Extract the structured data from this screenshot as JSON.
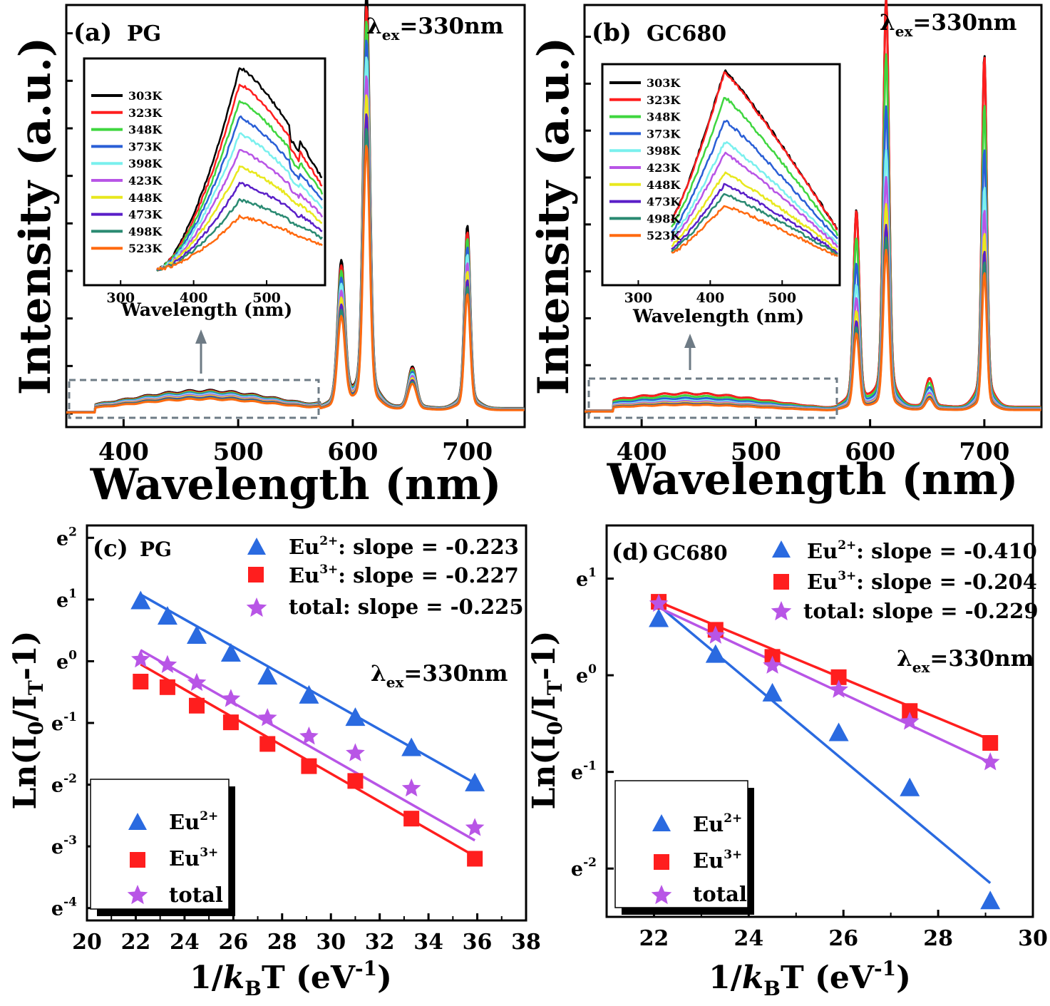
{
  "colors": {
    "temps": [
      "#000000",
      "#ff1e1e",
      "#3fd63f",
      "#2a5fd6",
      "#7af0ee",
      "#b855e6",
      "#e8e81e",
      "#5a1fc8",
      "#2a8a72",
      "#ff6a10"
    ],
    "eu2": "#2a6ae0",
    "eu3": "#ff1e1e",
    "total": "#b855e6",
    "box": "#6e7b85"
  },
  "panels": {
    "a": {
      "label": "(a)",
      "sample": "PG",
      "lambda": "λ",
      "lambda_sub": "ex",
      "lambda_val": "=330nm"
    },
    "b": {
      "label": "(b)",
      "sample": "GC680",
      "lambda": "λ",
      "lambda_sub": "ex",
      "lambda_val": "=330nm"
    },
    "c": {
      "label": "(c)",
      "sample": "PG",
      "lambda": "λ",
      "lambda_sub": "ex",
      "lambda_val": "=330nm"
    },
    "d": {
      "label": "(d)",
      "sample": "GC680",
      "lambda": "λ",
      "lambda_sub": "ex",
      "lambda_val": "=330nm"
    }
  },
  "axis_text": {
    "spectra_ylabel": "Intensity (a.u.)",
    "spectra_xlabel": "Wavelength (nm)",
    "inset_xlabel": "Wavelength (nm)",
    "fit_ylabel": [
      "Ln(I",
      "0",
      "/I",
      "T",
      "-1)"
    ],
    "fit_xlabel": [
      "1/",
      "k",
      "B",
      "T (eV",
      "-1",
      ")"
    ]
  },
  "slopes": {
    "c": {
      "eu2": {
        "ion": "Eu",
        "sup": "2+",
        "text": ": slope = -0.223"
      },
      "eu3": {
        "ion": "Eu",
        "sup": "3+",
        "text": ": slope = -0.227"
      },
      "total": {
        "text": "total: slope = -0.225"
      }
    },
    "d": {
      "eu2": {
        "ion": "Eu",
        "sup": "2+",
        "text": ": slope = -0.410"
      },
      "eu3": {
        "ion": "Eu",
        "sup": "3+",
        "text": ": slope = -0.204"
      },
      "total": {
        "text": "total: slope = -0.229"
      }
    }
  },
  "legend": {
    "eu2": {
      "ion": "Eu",
      "sup": "2+"
    },
    "eu3": {
      "ion": "Eu",
      "sup": "3+"
    },
    "total": "total"
  },
  "chart_data": [
    {
      "panel": "a",
      "type": "line",
      "xlim": [
        350,
        750
      ],
      "xticks": [
        400,
        500,
        600,
        700
      ],
      "series_names": [
        "303K",
        "323K",
        "348K",
        "373K",
        "398K",
        "423K",
        "448K",
        "473K",
        "498K",
        "523K"
      ],
      "scales": [
        1.0,
        0.965,
        0.93,
        0.885,
        0.845,
        0.8,
        0.755,
        0.71,
        0.675,
        0.635
      ],
      "peaks": [
        {
          "x": 590,
          "y": 0.35,
          "w": 4.5
        },
        {
          "x": 612,
          "y": 1.0,
          "w": 4.0
        },
        {
          "x": 652,
          "y": 0.1,
          "w": 5.0
        },
        {
          "x": 700,
          "y": 0.44,
          "w": 3.5
        }
      ],
      "broadband": {
        "center": 470,
        "height": 0.055,
        "end": 572
      },
      "inset": {
        "xlim": [
          250,
          580
        ],
        "xticks": [
          300,
          400,
          500
        ],
        "series_names": [
          "303K",
          "323K",
          "348K",
          "373K",
          "398K",
          "423K",
          "448K",
          "473K",
          "498K",
          "523K"
        ]
      }
    },
    {
      "panel": "b",
      "type": "line",
      "xlim": [
        350,
        750
      ],
      "xticks": [
        400,
        500,
        600,
        700
      ],
      "series_names": [
        "303K",
        "323K",
        "348K",
        "373K",
        "398K",
        "423K",
        "448K",
        "473K",
        "498K",
        "523K"
      ],
      "scales": [
        1.0,
        0.995,
        0.86,
        0.735,
        0.63,
        0.565,
        0.5,
        0.45,
        0.42,
        0.39
      ],
      "peaks": [
        {
          "x": 588,
          "y": 0.48,
          "w": 3.5
        },
        {
          "x": 614,
          "y": 1.0,
          "w": 3.5
        },
        {
          "x": 652,
          "y": 0.07,
          "w": 4.5
        },
        {
          "x": 700,
          "y": 0.86,
          "w": 3.0
        }
      ],
      "broadband": {
        "center": 440,
        "height": 0.045,
        "end": 572
      },
      "inset": {
        "xlim": [
          250,
          580
        ],
        "xticks": [
          300,
          400,
          500
        ],
        "series_names": [
          "303K",
          "323K",
          "348K",
          "373K",
          "398K",
          "423K",
          "448K",
          "473K",
          "498K",
          "523K"
        ]
      }
    },
    {
      "panel": "c",
      "type": "scatter",
      "xlabel": "1/kBT (eV-1)",
      "ylabel": "Ln(I0/IT-1)",
      "xlim": [
        20,
        38
      ],
      "ylim": [
        -4.2,
        2.2
      ],
      "xticks": [
        20,
        22,
        24,
        26,
        28,
        30,
        32,
        34,
        36,
        38
      ],
      "yticks": [
        {
          "v": 2,
          "t": "e",
          "s": "2"
        },
        {
          "v": 1,
          "t": "e",
          "s": "1"
        },
        {
          "v": 0,
          "t": "e",
          "s": "0"
        },
        {
          "v": -1,
          "t": "e",
          "s": "-1"
        },
        {
          "v": -2,
          "t": "e",
          "s": "-2"
        },
        {
          "v": -3,
          "t": "e",
          "s": "-3"
        },
        {
          "v": -4,
          "t": "e",
          "s": "-4"
        }
      ],
      "series": [
        {
          "name": "Eu2+",
          "marker": "triangle",
          "x": [
            22.2,
            23.3,
            24.5,
            25.9,
            27.4,
            29.1,
            31.0,
            33.3,
            35.9
          ],
          "y": [
            0.97,
            0.72,
            0.41,
            0.12,
            -0.25,
            -0.56,
            -0.92,
            -1.41,
            -1.98
          ]
        },
        {
          "name": "Eu3+",
          "marker": "square",
          "x": [
            22.2,
            23.3,
            24.5,
            25.9,
            27.4,
            29.1,
            31.0,
            33.3,
            35.9
          ],
          "y": [
            -0.33,
            -0.42,
            -0.72,
            -0.99,
            -1.34,
            -1.7,
            -1.94,
            -2.55,
            -3.2
          ]
        },
        {
          "name": "total",
          "marker": "star",
          "x": [
            22.2,
            23.3,
            24.5,
            25.9,
            27.4,
            29.1,
            31.0,
            33.3,
            35.9
          ],
          "y": [
            0.03,
            -0.06,
            -0.35,
            -0.61,
            -0.92,
            -1.22,
            -1.49,
            -2.06,
            -2.7
          ]
        }
      ],
      "fits": [
        {
          "name": "Eu2+",
          "x0": 22.2,
          "y0": 1.08,
          "slope": -0.223,
          "x1": 35.9
        },
        {
          "name": "Eu3+",
          "x0": 22.2,
          "y0": -0.05,
          "slope": -0.227,
          "x1": 35.9
        },
        {
          "name": "total",
          "x0": 22.2,
          "y0": 0.18,
          "slope": -0.225,
          "x1": 35.9
        }
      ]
    },
    {
      "panel": "d",
      "type": "scatter",
      "xlabel": "1/kBT (eV-1)",
      "ylabel": "Ln(I0/IT-1)",
      "xlim": [
        21,
        30
      ],
      "ylim": [
        -2.5,
        1.55
      ],
      "xticks": [
        22,
        24,
        26,
        28,
        30
      ],
      "yticks": [
        {
          "v": 1,
          "t": "e",
          "s": "1"
        },
        {
          "v": 0,
          "t": "e",
          "s": "0"
        },
        {
          "v": -1,
          "t": "e",
          "s": "-1"
        },
        {
          "v": -2,
          "t": "e",
          "s": "-2"
        }
      ],
      "series": [
        {
          "name": "Eu2+",
          "marker": "triangle",
          "x": [
            22.1,
            23.3,
            24.5,
            25.9,
            27.4,
            29.1
          ],
          "y": [
            0.58,
            0.21,
            -0.19,
            -0.6,
            -1.17,
            -2.34
          ]
        },
        {
          "name": "Eu3+",
          "marker": "square",
          "x": [
            22.1,
            23.3,
            24.5,
            25.9,
            27.4,
            29.1
          ],
          "y": [
            0.76,
            0.47,
            0.19,
            -0.02,
            -0.37,
            -0.7
          ]
        },
        {
          "name": "total",
          "marker": "star",
          "x": [
            22.1,
            23.3,
            24.5,
            25.9,
            27.4,
            29.1
          ],
          "y": [
            0.74,
            0.41,
            0.1,
            -0.15,
            -0.48,
            -0.9
          ]
        }
      ],
      "fits": [
        {
          "name": "Eu2+",
          "x0": 22.1,
          "y0": 0.72,
          "slope": -0.41,
          "x1": 29.1
        },
        {
          "name": "Eu3+",
          "x0": 22.1,
          "y0": 0.76,
          "slope": -0.204,
          "x1": 29.1
        },
        {
          "name": "total",
          "x0": 22.1,
          "y0": 0.7,
          "slope": -0.229,
          "x1": 29.1
        }
      ]
    }
  ]
}
